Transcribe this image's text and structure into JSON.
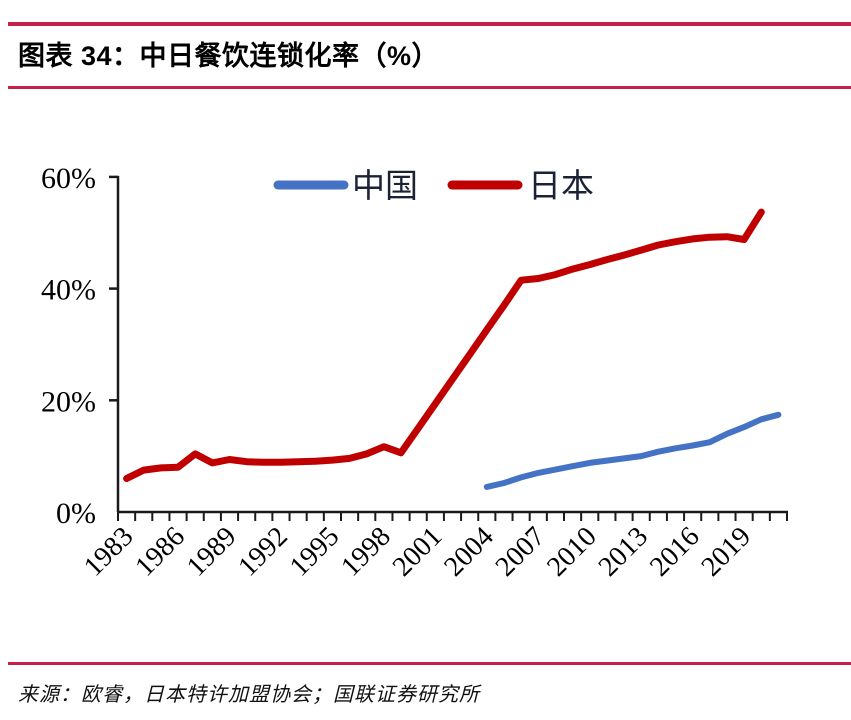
{
  "figure": {
    "title": "图表 34：中日餐饮连锁化率（%）",
    "source": "来源：欧睿，日本特许加盟协会；国联证券研究所"
  },
  "colors": {
    "rule_red": "#C4224C",
    "china_blue": "#4472C4",
    "japan_red": "#C00000",
    "axis_black": "#1A1A1A",
    "label_black": "#000000"
  },
  "chart_data": {
    "type": "line",
    "title": "中日餐饮连锁化率（%）",
    "xlabel": "",
    "ylabel": "",
    "ylim": [
      0,
      60
    ],
    "yticks": [
      "0%",
      "20%",
      "40%",
      "60%"
    ],
    "x_range": [
      1983,
      2021
    ],
    "xtick_labels": [
      "1983",
      "1986",
      "1989",
      "1992",
      "1995",
      "1998",
      "2001",
      "2004",
      "2007",
      "2010",
      "2013",
      "2016",
      "2019"
    ],
    "grid": false,
    "legend_position": "top-center",
    "series": [
      {
        "name": "中国",
        "color": "#4472C4",
        "start_year": 2004,
        "years": [
          2004,
          2005,
          2006,
          2007,
          2008,
          2009,
          2010,
          2011,
          2012,
          2013,
          2014,
          2015,
          2016,
          2017,
          2018,
          2019,
          2020,
          2021
        ],
        "values": [
          4.5,
          5.2,
          6.2,
          7.0,
          7.6,
          8.2,
          8.8,
          9.2,
          9.6,
          10.0,
          10.8,
          11.4,
          11.9,
          12.5,
          14.0,
          15.2,
          16.6,
          17.4
        ]
      },
      {
        "name": "日本",
        "color": "#C00000",
        "start_year": 1983,
        "years": [
          1983,
          1984,
          1985,
          1986,
          1987,
          1988,
          1989,
          1990,
          1991,
          1992,
          1993,
          1994,
          1995,
          1996,
          1997,
          1998,
          1999,
          2000,
          2001,
          2002,
          2003,
          2004,
          2005,
          2006,
          2007,
          2008,
          2009,
          2010,
          2011,
          2012,
          2013,
          2014,
          2015,
          2016,
          2017,
          2018,
          2019,
          2020
        ],
        "values": [
          6.0,
          7.5,
          7.9,
          8.0,
          10.4,
          8.8,
          9.4,
          9.0,
          8.9,
          8.9,
          9.0,
          9.1,
          9.3,
          9.6,
          10.4,
          11.7,
          10.6,
          15.0,
          19.4,
          23.8,
          28.2,
          32.6,
          37.0,
          41.5,
          41.8,
          42.5,
          43.5,
          44.3,
          45.2,
          46.0,
          46.9,
          47.8,
          48.4,
          48.9,
          49.2,
          49.3,
          48.8,
          53.7
        ]
      }
    ]
  }
}
